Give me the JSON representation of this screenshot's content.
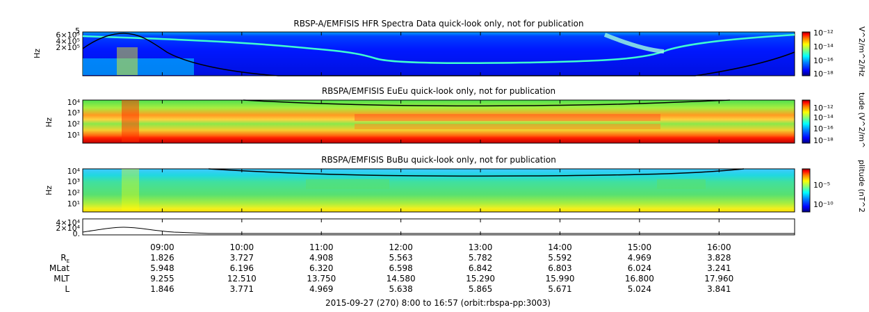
{
  "panels": [
    {
      "title": "RBSP-A/EMFISIS  HFR Spectra Data quick-look only, not for publication",
      "ylabel": "Hz",
      "yticks": [
        "5",
        "6×10⁵",
        "4×10⁵",
        "2×10⁵"
      ],
      "cbar_label": "V^2/m^2/Hz",
      "cbar_ticks": [
        "10⁻¹²",
        "10⁻¹⁴",
        "10⁻¹⁶",
        "10⁻¹⁸"
      ]
    },
    {
      "title": "RBSPA/EMFISIS  EuEu quick-look only, not for publication",
      "ylabel": "Hz",
      "yticks": [
        "10⁴",
        "10³",
        "10²",
        "10¹"
      ],
      "cbar_label": "tude (V^2/m^",
      "cbar_ticks": [
        "10⁻¹²",
        "10⁻¹⁴",
        "10⁻¹⁶",
        "10⁻¹⁸"
      ]
    },
    {
      "title": "RBSPA/EMFISIS  BuBu quick-look only, not for publication",
      "ylabel": "Hz",
      "yticks": [
        "10⁴",
        "10³",
        "10²",
        "10¹"
      ],
      "cbar_label": "plitude (nT^2",
      "cbar_ticks": [
        "10⁻⁵",
        "10⁻¹⁰"
      ]
    },
    {
      "title": "",
      "ylabel": "",
      "yticks": [
        "4×10⁴",
        "2×10⁴",
        "0."
      ]
    }
  ],
  "chart_data": {
    "type": "heatmap",
    "x_range": [
      "08:00",
      "16:57"
    ],
    "x_tick_labels": [
      "09:00",
      "10:00",
      "11:00",
      "12:00",
      "13:00",
      "14:00",
      "15:00",
      "16:00"
    ],
    "ephemeris": [
      {
        "label": "R",
        "sub": "E",
        "values": [
          "1.826",
          "3.727",
          "4.908",
          "5.563",
          "5.782",
          "5.592",
          "4.969",
          "3.828"
        ]
      },
      {
        "label": "MLat",
        "sub": "",
        "values": [
          "5.948",
          "6.196",
          "6.320",
          "6.598",
          "6.842",
          "6.803",
          "6.024",
          "3.241"
        ]
      },
      {
        "label": "MLT",
        "sub": "",
        "values": [
          "9.255",
          "12.510",
          "13.750",
          "14.580",
          "15.290",
          "15.990",
          "16.800",
          "17.960"
        ]
      },
      {
        "label": "L",
        "sub": "",
        "values": [
          "1.846",
          "3.771",
          "4.969",
          "5.638",
          "5.865",
          "5.671",
          "5.024",
          "3.841"
        ]
      }
    ],
    "footer": "2015-09-27 (270) 8:00 to 16:57 (orbit:rbspa-pp:3003)",
    "colormap": [
      "#00007f",
      "#0000ff",
      "#007fff",
      "#00ffff",
      "#7fff7f",
      "#ffff00",
      "#ff7f00",
      "#ff0000",
      "#7f0000"
    ]
  }
}
